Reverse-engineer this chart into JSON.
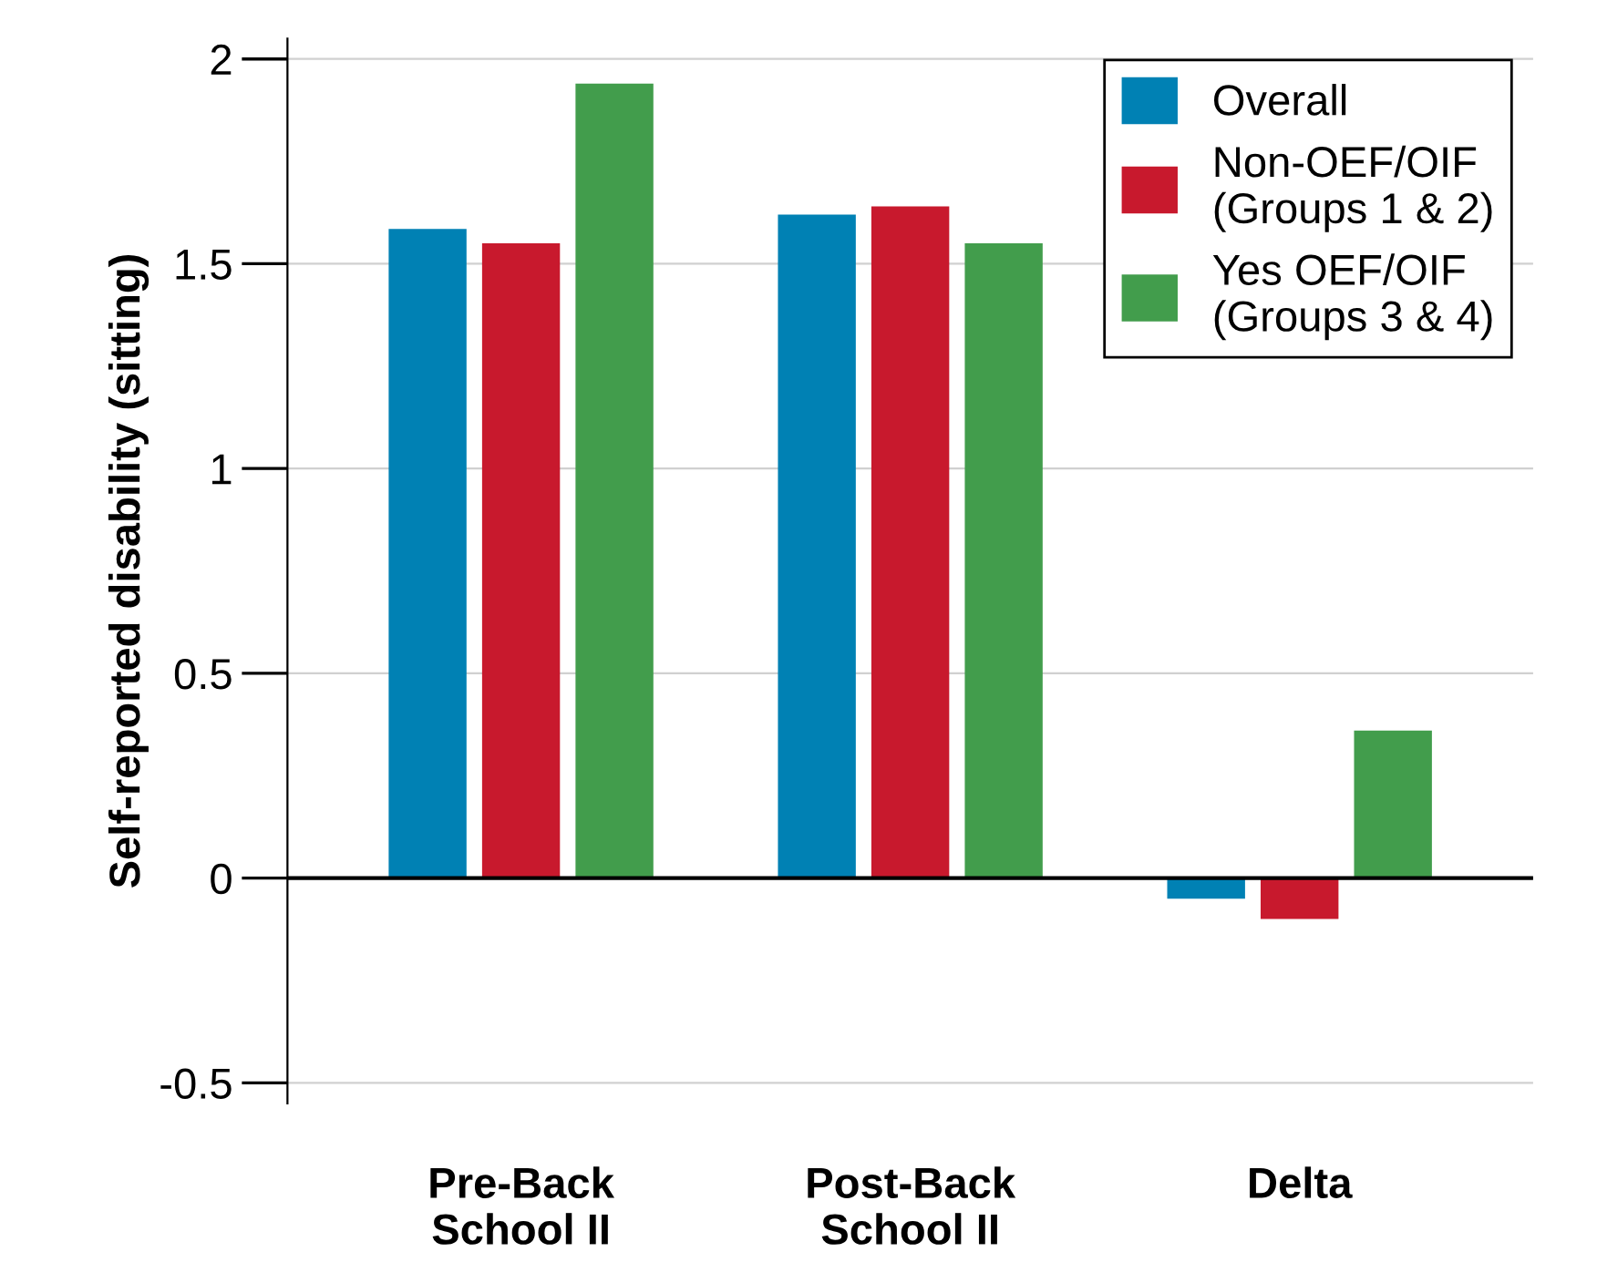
{
  "chart_data": {
    "type": "bar",
    "ylabel": "Self-reported disability (sitting)",
    "categories": [
      "Pre-Back\nSchool II",
      "Post-Back\nSchool II",
      "Delta"
    ],
    "series": [
      {
        "name": "Overall",
        "color": "#0081b4",
        "values": [
          1.585,
          1.62,
          -0.05
        ]
      },
      {
        "name": "Non-OEF/OIF\n(Groups 1 & 2)",
        "color": "#c8192d",
        "values": [
          1.55,
          1.64,
          -0.1
        ]
      },
      {
        "name": "Yes OEF/OIF\n(Groups 3 & 4)",
        "color": "#429d4c",
        "values": [
          1.94,
          1.55,
          0.36
        ]
      }
    ],
    "ylim": [
      -0.55,
      2.05
    ],
    "yticks": [
      -0.5,
      0,
      0.5,
      1,
      1.5,
      2
    ],
    "grid": "y",
    "legend": "top right",
    "ref_lines": [
      {
        "axis": "y",
        "value": 0,
        "color": "#000000"
      }
    ]
  }
}
